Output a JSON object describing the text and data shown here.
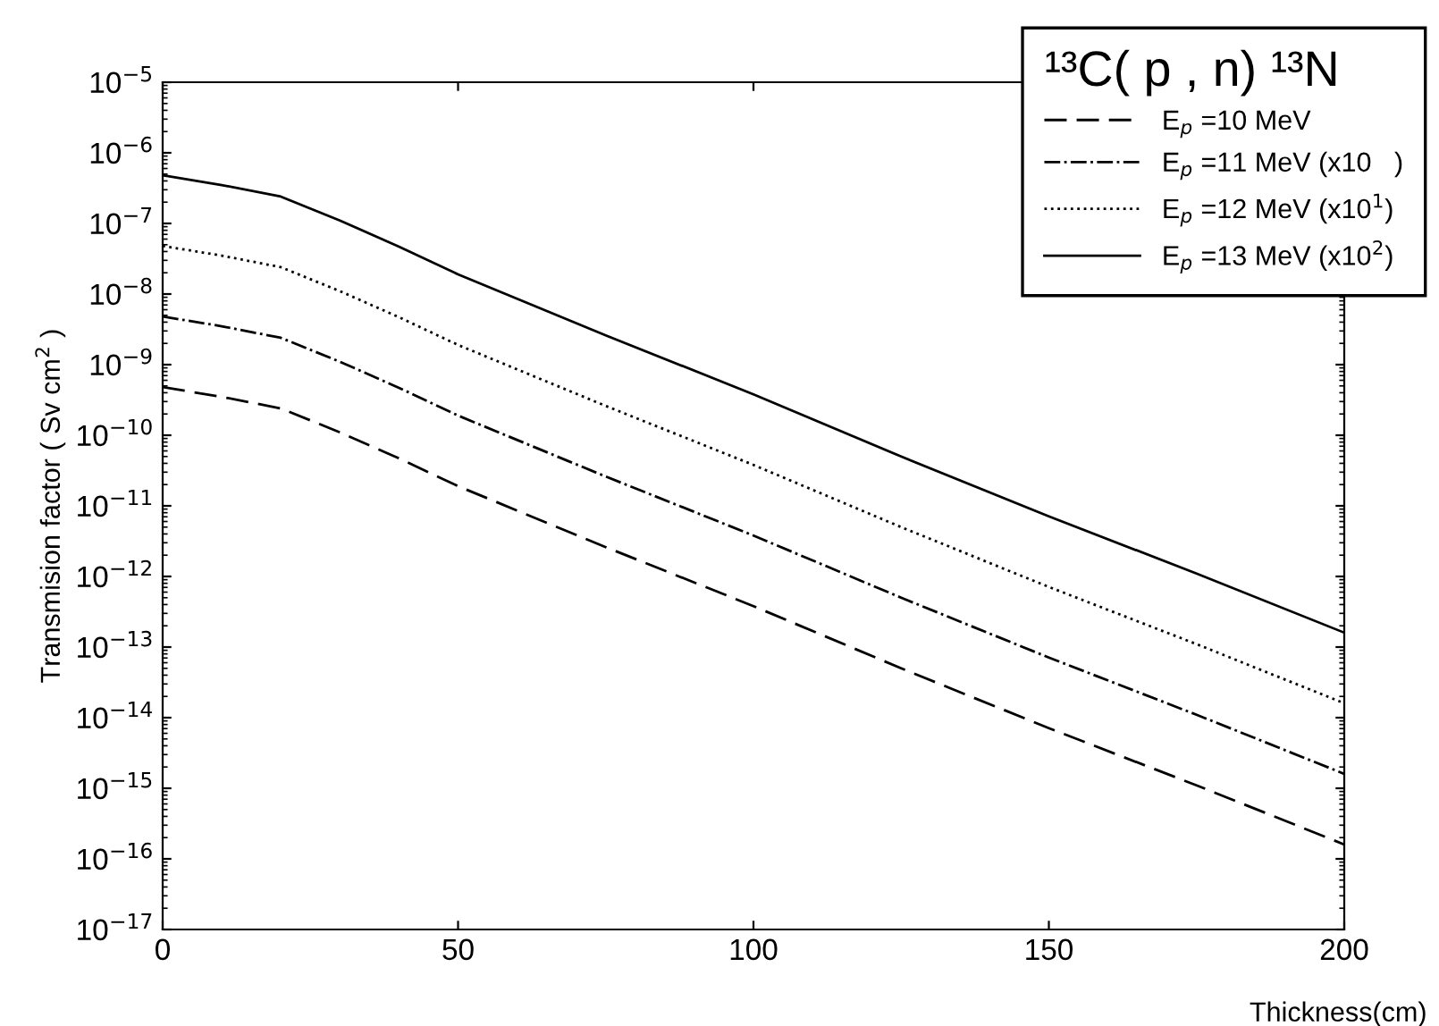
{
  "chart_data": {
    "type": "line",
    "xlabel": "Thickness(cm)",
    "ylabel": "Transmision factor ( Sv cm$^{2}$ )",
    "legend_title": "¹³C( p , n) ¹³N",
    "legend": "top right",
    "log": "y",
    "grid": false,
    "marker": "none",
    "x": [
      0,
      10,
      20,
      30,
      40,
      50,
      75,
      100,
      125,
      150,
      175,
      200
    ],
    "series": [
      {
        "name": "E$_{p}$ =10 MeV",
        "color": "#000000",
        "line_style": "dashed",
        "values": [
          4.8e-10,
          3.5e-10,
          2.4e-10,
          1.1e-10,
          4.7e-11,
          1.9e-11,
          2.6e-12,
          3.8e-13,
          5e-14,
          7.1e-15,
          1.1e-15,
          1.6e-16
        ]
      },
      {
        "name": "E$_{p}$ =11 MeV (x10   )",
        "color": "#000000",
        "line_style": "dashdot",
        "values": [
          4.8e-09,
          3.5e-09,
          2.4e-09,
          1.1e-09,
          4.7e-10,
          1.9e-10,
          2.6e-11,
          3.8e-12,
          5e-13,
          7.1e-14,
          1.1e-14,
          1.6e-15
        ]
      },
      {
        "name": "E$_{p}$ =12 MeV (x10$^{1}$)",
        "color": "#000000",
        "line_style": "dotted",
        "values": [
          4.8e-08,
          3.5e-08,
          2.4e-08,
          1.1e-08,
          4.7e-09,
          1.9e-09,
          2.6e-10,
          3.8e-11,
          5e-12,
          7.1e-13,
          1.1e-13,
          1.6e-14
        ]
      },
      {
        "name": "E$_{p}$ =13 MeV (x10$^{2}$)",
        "color": "#000000",
        "line_style": "solid",
        "values": [
          4.8e-07,
          3.5e-07,
          2.4e-07,
          1.1e-07,
          4.7e-08,
          1.9e-08,
          2.6e-09,
          3.8e-10,
          5e-11,
          7.1e-12,
          1.1e-12,
          1.6e-13
        ]
      }
    ],
    "xlim": [
      0,
      200
    ],
    "xticks": [
      0,
      50,
      100,
      150,
      200
    ],
    "ylim": [
      1e-17,
      1e-05
    ],
    "yticks": [
      {
        "value": 1e-17,
        "label": "10$^{−17}$"
      },
      {
        "value": 1e-16,
        "label": "10$^{−16}$"
      },
      {
        "value": 1e-15,
        "label": "10$^{−15}$"
      },
      {
        "value": 1e-14,
        "label": "10$^{−14}$"
      },
      {
        "value": 1e-13,
        "label": "10$^{−13}$"
      },
      {
        "value": 1e-12,
        "label": "10$^{−12}$"
      },
      {
        "value": 1e-11,
        "label": "10$^{−11}$"
      },
      {
        "value": 1e-10,
        "label": "10$^{−10}$"
      },
      {
        "value": 1e-09,
        "label": "10$^{−9}$"
      },
      {
        "value": 1e-08,
        "label": "10$^{−8}$"
      },
      {
        "value": 1e-07,
        "label": "10$^{−7}$"
      },
      {
        "value": 1e-06,
        "label": "10$^{−6}$"
      },
      {
        "value": 1e-05,
        "label": "10$^{−5}$"
      }
    ]
  }
}
